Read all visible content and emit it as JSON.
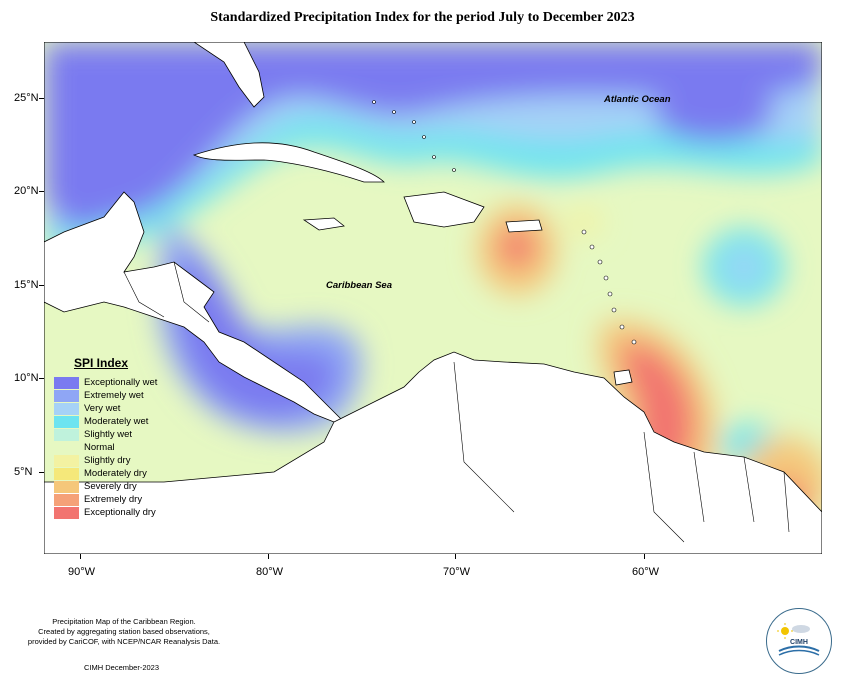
{
  "title": "Standardized Precipitation Index for the period July to December 2023",
  "map_labels": {
    "atlantic": "Atlantic Ocean",
    "caribbean": "Caribbean Sea"
  },
  "lat_labels": [
    "25°N",
    "20°N",
    "15°N",
    "10°N",
    "5°N"
  ],
  "lon_labels": [
    "90°W",
    "80°W",
    "70°W",
    "60°W"
  ],
  "legend": {
    "title": "SPI Index",
    "items": [
      {
        "label": "Exceptionally wet",
        "color": "#7a7af0"
      },
      {
        "label": "Extremely wet",
        "color": "#8fa6f5"
      },
      {
        "label": "Very wet",
        "color": "#a6d2f7"
      },
      {
        "label": "Moderately wet",
        "color": "#6de4f0"
      },
      {
        "label": "Slightly wet",
        "color": "#bff2dc"
      },
      {
        "label": "Normal",
        "color": "#e6f8c2"
      },
      {
        "label": "Slightly dry",
        "color": "#f3f2a2"
      },
      {
        "label": "Moderately dry",
        "color": "#f5e87a"
      },
      {
        "label": "Severely dry",
        "color": "#f5c77a"
      },
      {
        "label": "Extremely dry",
        "color": "#f5a178"
      },
      {
        "label": "Exceptionally dry",
        "color": "#f27470"
      }
    ]
  },
  "footer": {
    "line1": "Precipitation Map of the Caribbean Region.",
    "line2": "Created by aggregating station based observations,",
    "line3": "provided by CariCOF, with NCEP/NCAR Reanalysis Data.",
    "credit": "CIMH December-2023"
  },
  "logo": {
    "text": "CIMH"
  }
}
